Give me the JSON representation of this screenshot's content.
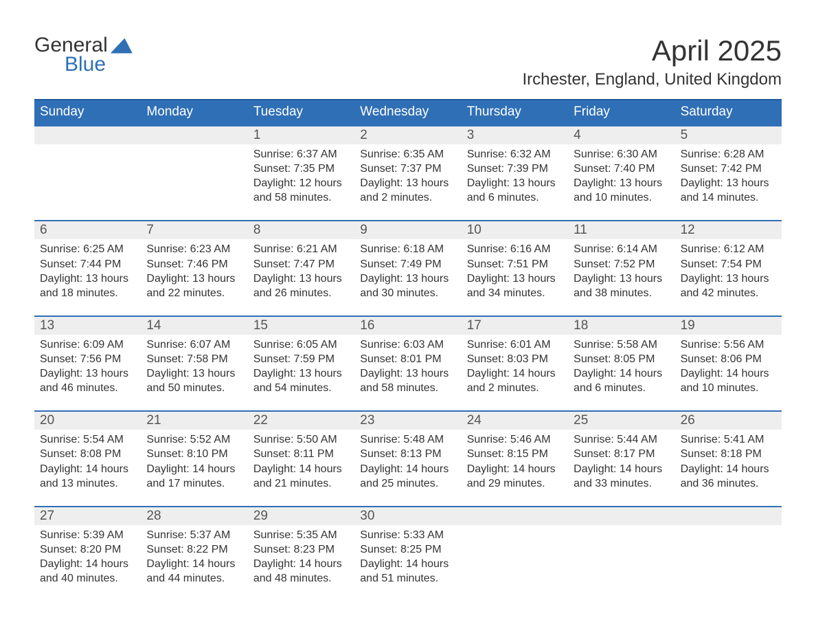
{
  "logo": {
    "line1": "General",
    "line2": "Blue"
  },
  "title": "April 2025",
  "location": "Irchester, England, United Kingdom",
  "colors": {
    "header_bg": "#2f6fb5",
    "header_border_top": "#1f5a9c",
    "week_border_top": "#2f6fb5",
    "daynum_bg": "#eeeeee",
    "page_bg": "#ffffff",
    "text": "#333333",
    "daynum_text": "#555555",
    "logo_accent": "#2f6fb5"
  },
  "layout": {
    "columns": 7,
    "weekday_fontsize": 19,
    "daynum_fontsize": 19,
    "body_fontsize": 16,
    "title_fontsize": 42,
    "location_fontsize": 24
  },
  "weekdays": [
    "Sunday",
    "Monday",
    "Tuesday",
    "Wednesday",
    "Thursday",
    "Friday",
    "Saturday"
  ],
  "weeks": [
    {
      "days": [
        {
          "num": "",
          "sunrise": "",
          "sunset": "",
          "daylight": ""
        },
        {
          "num": "",
          "sunrise": "",
          "sunset": "",
          "daylight": ""
        },
        {
          "num": "1",
          "sunrise": "Sunrise: 6:37 AM",
          "sunset": "Sunset: 7:35 PM",
          "daylight": "Daylight: 12 hours and 58 minutes."
        },
        {
          "num": "2",
          "sunrise": "Sunrise: 6:35 AM",
          "sunset": "Sunset: 7:37 PM",
          "daylight": "Daylight: 13 hours and 2 minutes."
        },
        {
          "num": "3",
          "sunrise": "Sunrise: 6:32 AM",
          "sunset": "Sunset: 7:39 PM",
          "daylight": "Daylight: 13 hours and 6 minutes."
        },
        {
          "num": "4",
          "sunrise": "Sunrise: 6:30 AM",
          "sunset": "Sunset: 7:40 PM",
          "daylight": "Daylight: 13 hours and 10 minutes."
        },
        {
          "num": "5",
          "sunrise": "Sunrise: 6:28 AM",
          "sunset": "Sunset: 7:42 PM",
          "daylight": "Daylight: 13 hours and 14 minutes."
        }
      ]
    },
    {
      "days": [
        {
          "num": "6",
          "sunrise": "Sunrise: 6:25 AM",
          "sunset": "Sunset: 7:44 PM",
          "daylight": "Daylight: 13 hours and 18 minutes."
        },
        {
          "num": "7",
          "sunrise": "Sunrise: 6:23 AM",
          "sunset": "Sunset: 7:46 PM",
          "daylight": "Daylight: 13 hours and 22 minutes."
        },
        {
          "num": "8",
          "sunrise": "Sunrise: 6:21 AM",
          "sunset": "Sunset: 7:47 PM",
          "daylight": "Daylight: 13 hours and 26 minutes."
        },
        {
          "num": "9",
          "sunrise": "Sunrise: 6:18 AM",
          "sunset": "Sunset: 7:49 PM",
          "daylight": "Daylight: 13 hours and 30 minutes."
        },
        {
          "num": "10",
          "sunrise": "Sunrise: 6:16 AM",
          "sunset": "Sunset: 7:51 PM",
          "daylight": "Daylight: 13 hours and 34 minutes."
        },
        {
          "num": "11",
          "sunrise": "Sunrise: 6:14 AM",
          "sunset": "Sunset: 7:52 PM",
          "daylight": "Daylight: 13 hours and 38 minutes."
        },
        {
          "num": "12",
          "sunrise": "Sunrise: 6:12 AM",
          "sunset": "Sunset: 7:54 PM",
          "daylight": "Daylight: 13 hours and 42 minutes."
        }
      ]
    },
    {
      "days": [
        {
          "num": "13",
          "sunrise": "Sunrise: 6:09 AM",
          "sunset": "Sunset: 7:56 PM",
          "daylight": "Daylight: 13 hours and 46 minutes."
        },
        {
          "num": "14",
          "sunrise": "Sunrise: 6:07 AM",
          "sunset": "Sunset: 7:58 PM",
          "daylight": "Daylight: 13 hours and 50 minutes."
        },
        {
          "num": "15",
          "sunrise": "Sunrise: 6:05 AM",
          "sunset": "Sunset: 7:59 PM",
          "daylight": "Daylight: 13 hours and 54 minutes."
        },
        {
          "num": "16",
          "sunrise": "Sunrise: 6:03 AM",
          "sunset": "Sunset: 8:01 PM",
          "daylight": "Daylight: 13 hours and 58 minutes."
        },
        {
          "num": "17",
          "sunrise": "Sunrise: 6:01 AM",
          "sunset": "Sunset: 8:03 PM",
          "daylight": "Daylight: 14 hours and 2 minutes."
        },
        {
          "num": "18",
          "sunrise": "Sunrise: 5:58 AM",
          "sunset": "Sunset: 8:05 PM",
          "daylight": "Daylight: 14 hours and 6 minutes."
        },
        {
          "num": "19",
          "sunrise": "Sunrise: 5:56 AM",
          "sunset": "Sunset: 8:06 PM",
          "daylight": "Daylight: 14 hours and 10 minutes."
        }
      ]
    },
    {
      "days": [
        {
          "num": "20",
          "sunrise": "Sunrise: 5:54 AM",
          "sunset": "Sunset: 8:08 PM",
          "daylight": "Daylight: 14 hours and 13 minutes."
        },
        {
          "num": "21",
          "sunrise": "Sunrise: 5:52 AM",
          "sunset": "Sunset: 8:10 PM",
          "daylight": "Daylight: 14 hours and 17 minutes."
        },
        {
          "num": "22",
          "sunrise": "Sunrise: 5:50 AM",
          "sunset": "Sunset: 8:11 PM",
          "daylight": "Daylight: 14 hours and 21 minutes."
        },
        {
          "num": "23",
          "sunrise": "Sunrise: 5:48 AM",
          "sunset": "Sunset: 8:13 PM",
          "daylight": "Daylight: 14 hours and 25 minutes."
        },
        {
          "num": "24",
          "sunrise": "Sunrise: 5:46 AM",
          "sunset": "Sunset: 8:15 PM",
          "daylight": "Daylight: 14 hours and 29 minutes."
        },
        {
          "num": "25",
          "sunrise": "Sunrise: 5:44 AM",
          "sunset": "Sunset: 8:17 PM",
          "daylight": "Daylight: 14 hours and 33 minutes."
        },
        {
          "num": "26",
          "sunrise": "Sunrise: 5:41 AM",
          "sunset": "Sunset: 8:18 PM",
          "daylight": "Daylight: 14 hours and 36 minutes."
        }
      ]
    },
    {
      "days": [
        {
          "num": "27",
          "sunrise": "Sunrise: 5:39 AM",
          "sunset": "Sunset: 8:20 PM",
          "daylight": "Daylight: 14 hours and 40 minutes."
        },
        {
          "num": "28",
          "sunrise": "Sunrise: 5:37 AM",
          "sunset": "Sunset: 8:22 PM",
          "daylight": "Daylight: 14 hours and 44 minutes."
        },
        {
          "num": "29",
          "sunrise": "Sunrise: 5:35 AM",
          "sunset": "Sunset: 8:23 PM",
          "daylight": "Daylight: 14 hours and 48 minutes."
        },
        {
          "num": "30",
          "sunrise": "Sunrise: 5:33 AM",
          "sunset": "Sunset: 8:25 PM",
          "daylight": "Daylight: 14 hours and 51 minutes."
        },
        {
          "num": "",
          "sunrise": "",
          "sunset": "",
          "daylight": ""
        },
        {
          "num": "",
          "sunrise": "",
          "sunset": "",
          "daylight": ""
        },
        {
          "num": "",
          "sunrise": "",
          "sunset": "",
          "daylight": ""
        }
      ]
    }
  ]
}
